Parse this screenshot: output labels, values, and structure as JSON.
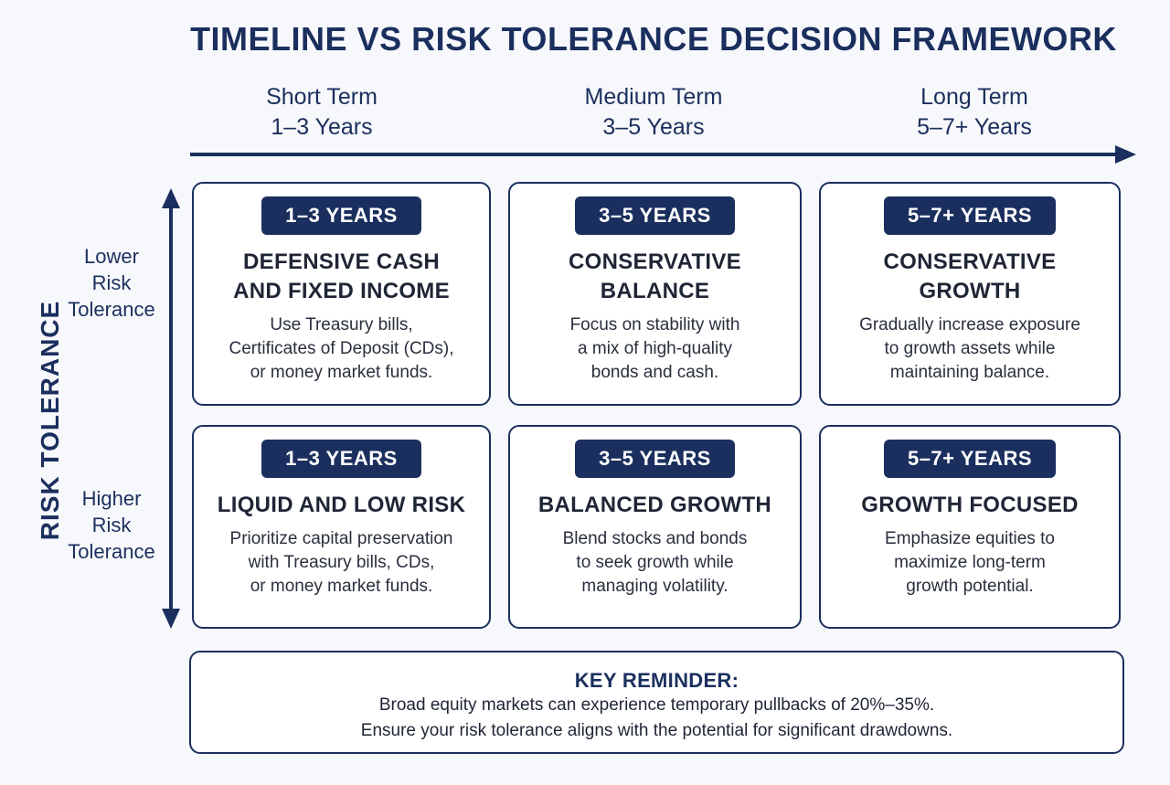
{
  "title": "TIMELINE VS RISK TOLERANCE DECISION FRAMEWORK",
  "columns": [
    {
      "name": "Short Term",
      "range": "1–3 Years"
    },
    {
      "name": "Medium Term",
      "range": "3–5 Years"
    },
    {
      "name": "Long Term",
      "range": "5–7+ Years"
    }
  ],
  "y_axis_label": "RISK TOLERANCE",
  "rows": [
    {
      "label_lines": [
        "Lower",
        "Risk",
        "Tolerance"
      ]
    },
    {
      "label_lines": [
        "Higher",
        "Risk",
        "Tolerance"
      ]
    }
  ],
  "cells": [
    [
      {
        "badge": "1–3 YEARS",
        "title_lines": [
          "DEFENSIVE CASH",
          "AND FIXED INCOME"
        ],
        "desc_lines": [
          "Use Treasury bills,",
          "Certificates of Deposit (CDs),",
          "or money market funds."
        ]
      },
      {
        "badge": "3–5 YEARS",
        "title_lines": [
          "CONSERVATIVE",
          "BALANCE"
        ],
        "desc_lines": [
          "Focus on stability with",
          "a mix of high-quality",
          "bonds and cash."
        ]
      },
      {
        "badge": "5–7+ YEARS",
        "title_lines": [
          "CONSERVATIVE",
          "GROWTH"
        ],
        "desc_lines": [
          "Gradually increase exposure",
          "to growth assets while",
          "maintaining balance."
        ]
      }
    ],
    [
      {
        "badge": "1–3 YEARS",
        "title_lines": [
          "LIQUID AND LOW RISK"
        ],
        "desc_lines": [
          "Prioritize capital preservation",
          "with Treasury bills, CDs,",
          "or money market funds."
        ]
      },
      {
        "badge": "3–5 YEARS",
        "title_lines": [
          "BALANCED GROWTH"
        ],
        "desc_lines": [
          "Blend stocks and bonds",
          "to seek growth while",
          "managing volatility."
        ]
      },
      {
        "badge": "5–7+ YEARS",
        "title_lines": [
          "GROWTH FOCUSED"
        ],
        "desc_lines": [
          "Emphasize equities to",
          "maximize long-term",
          "growth potential."
        ]
      }
    ]
  ],
  "reminder": {
    "title": "KEY REMINDER:",
    "lines": [
      "Broad equity markets can experience temporary pullbacks of 20%–35%.",
      "Ensure your risk tolerance aligns with the potential for significant drawdowns."
    ]
  },
  "colors": {
    "navy": "#1b2f5e",
    "cell_bg": "#ffffff",
    "page_bg": "#f7f8fb"
  }
}
